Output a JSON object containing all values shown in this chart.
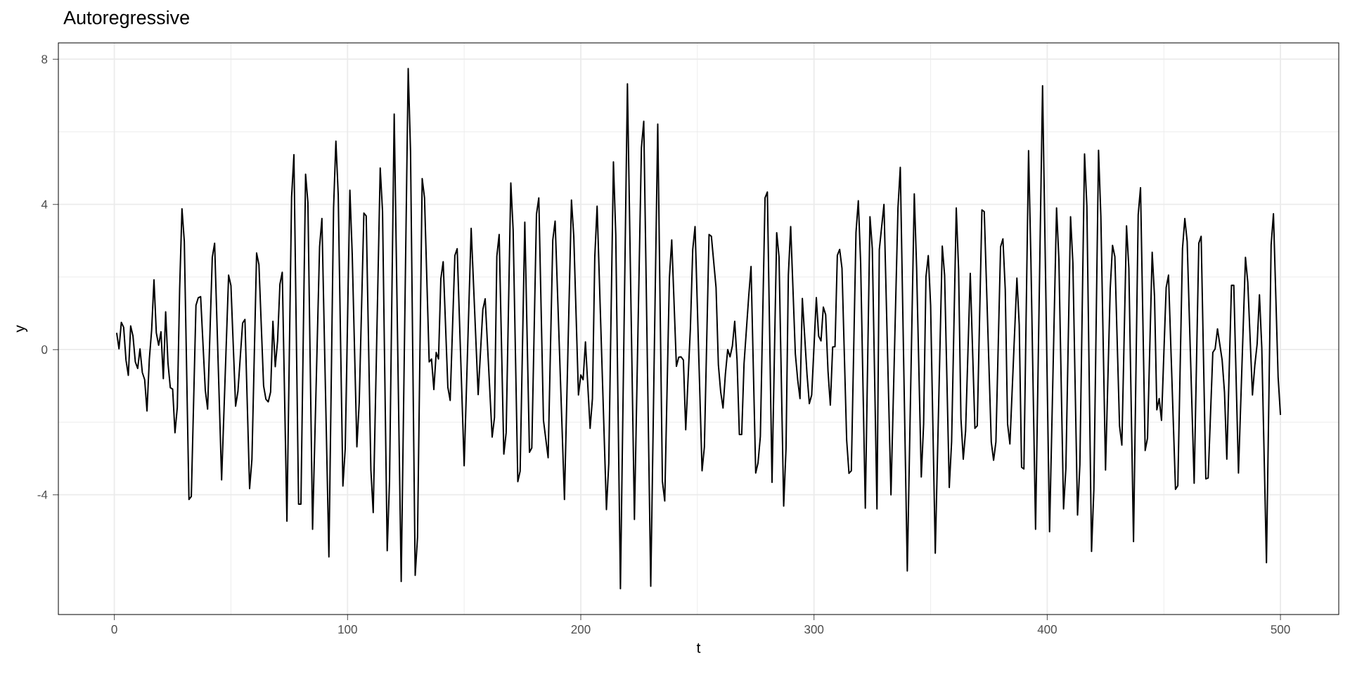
{
  "chart_data": {
    "type": "line",
    "title": "Autoregressive",
    "xlabel": "t",
    "ylabel": "y",
    "xlim": [
      -24,
      525
    ],
    "ylim": [
      -7.3,
      8.45
    ],
    "xticks": [
      0,
      100,
      200,
      300,
      400,
      500
    ],
    "yticks": [
      -4,
      0,
      4,
      8
    ],
    "grid": true,
    "color": "#000000",
    "x": [
      1,
      2,
      3,
      4,
      5,
      6,
      7,
      8,
      9,
      10,
      11,
      12,
      13,
      14,
      15,
      16,
      17,
      18,
      19,
      20,
      21,
      22,
      23,
      24,
      25,
      26,
      27,
      28,
      29,
      30,
      32,
      33,
      35,
      36,
      37,
      39,
      40,
      42,
      43,
      46,
      49,
      50,
      52,
      53,
      55,
      56,
      58,
      59,
      61,
      62,
      64,
      65,
      66,
      67,
      68,
      69,
      70,
      71,
      72,
      74,
      76,
      77,
      79,
      80,
      82,
      83,
      85,
      88,
      89,
      92,
      94,
      95,
      96,
      98,
      99,
      101,
      102,
      104,
      105,
      107,
      108,
      110,
      111,
      114,
      115,
      117,
      118,
      120,
      123,
      126,
      127,
      129,
      130,
      132,
      133,
      135,
      136,
      137,
      138,
      139,
      140,
      141,
      143,
      144,
      146,
      147,
      150,
      153,
      156,
      158,
      159,
      162,
      163,
      164,
      165,
      167,
      168,
      170,
      171,
      173,
      174,
      176,
      178,
      179,
      181,
      182,
      184,
      186,
      188,
      189,
      193,
      196,
      197,
      199,
      200,
      201,
      202,
      204,
      205,
      206,
      207,
      211,
      212,
      214,
      215,
      217,
      220,
      223,
      226,
      227,
      230,
      233,
      235,
      236,
      238,
      239,
      241,
      242,
      243,
      244,
      245,
      247,
      248,
      249,
      252,
      253,
      255,
      256,
      258,
      259,
      260,
      261,
      262,
      263,
      264,
      265,
      266,
      267,
      268,
      269,
      270,
      272,
      273,
      275,
      276,
      277,
      279,
      280,
      282,
      284,
      285,
      287,
      288,
      289,
      290,
      292,
      293,
      294,
      295,
      297,
      298,
      299,
      301,
      302,
      303,
      304,
      305,
      306,
      307,
      308,
      309,
      310,
      311,
      312,
      314,
      315,
      316,
      318,
      319,
      320,
      322,
      324,
      325,
      327,
      328,
      330,
      333,
      336,
      337,
      340,
      343,
      344,
      346,
      347,
      348,
      349,
      350,
      352,
      355,
      356,
      358,
      359,
      361,
      362,
      363,
      364,
      365,
      367,
      369,
      370,
      372,
      373,
      376,
      377,
      378,
      380,
      381,
      382,
      383,
      384,
      387,
      388,
      389,
      390,
      392,
      393,
      395,
      398,
      401,
      404,
      405,
      407,
      408,
      410,
      411,
      413,
      414,
      416,
      417,
      419,
      420,
      422,
      423,
      425,
      427,
      428,
      429,
      431,
      432,
      434,
      435,
      437,
      439,
      440,
      442,
      443,
      445,
      446,
      447,
      448,
      449,
      451,
      452,
      455,
      456,
      458,
      459,
      460,
      463,
      465,
      466,
      468,
      469,
      471,
      472,
      473,
      475,
      476,
      477,
      479,
      480,
      482,
      485,
      486,
      488,
      489,
      490,
      491,
      492,
      494,
      496,
      497,
      499,
      500
    ],
    "values": [
      0.46,
      0.02,
      0.75,
      0.61,
      -0.29,
      -0.71,
      0.65,
      0.37,
      -0.34,
      -0.52,
      0.02,
      -0.63,
      -0.83,
      -1.69,
      -0.27,
      0.54,
      1.92,
      0.46,
      0.12,
      0.49,
      -0.8,
      1.04,
      -0.37,
      -1.05,
      -1.09,
      -2.29,
      -1.59,
      1.66,
      3.88,
      2.98,
      -4.13,
      -4.05,
      1.22,
      1.43,
      1.46,
      -1.12,
      -1.64,
      2.54,
      2.93,
      -3.59,
      2.05,
      1.76,
      -1.56,
      -1.15,
      0.73,
      0.83,
      -3.83,
      -3.02,
      2.66,
      2.34,
      -1.0,
      -1.37,
      -1.44,
      -1.17,
      0.78,
      -0.47,
      0.24,
      1.8,
      2.13,
      -4.73,
      4.2,
      5.37,
      -4.26,
      -4.26,
      4.83,
      4.05,
      -4.95,
      2.83,
      3.61,
      -5.71,
      3.9,
      5.74,
      4.26,
      -3.76,
      -2.73,
      4.39,
      2.63,
      -2.68,
      -1.46,
      3.76,
      3.68,
      -3.32,
      -4.49,
      5.0,
      3.8,
      -5.54,
      -3.61,
      6.49,
      -6.39,
      7.74,
      5.46,
      -6.22,
      -5.17,
      4.71,
      4.18,
      -0.34,
      -0.26,
      -1.1,
      -0.08,
      -0.26,
      1.95,
      2.42,
      -1.04,
      -1.4,
      2.59,
      2.78,
      -3.2,
      3.34,
      -1.24,
      1.1,
      1.4,
      -2.41,
      -1.87,
      2.57,
      3.17,
      -2.88,
      -2.29,
      4.59,
      3.29,
      -3.64,
      -3.35,
      3.51,
      -2.83,
      -2.71,
      3.73,
      4.18,
      -1.95,
      -2.98,
      3.02,
      3.54,
      -4.13,
      4.12,
      3.12,
      -1.25,
      -0.7,
      -0.83,
      0.21,
      -2.17,
      -1.35,
      2.54,
      3.95,
      -4.41,
      -3.14,
      5.17,
      3.17,
      -6.59,
      7.32,
      -4.68,
      5.56,
      6.29,
      -6.52,
      6.21,
      -3.63,
      -4.17,
      1.98,
      3.02,
      -0.46,
      -0.21,
      -0.2,
      -0.29,
      -2.21,
      0.59,
      2.75,
      3.39,
      -3.34,
      -2.68,
      3.17,
      3.12,
      1.71,
      -0.42,
      -1.17,
      -1.61,
      -0.68,
      0.0,
      -0.2,
      0.1,
      0.78,
      -0.29,
      -2.34,
      -2.34,
      -0.39,
      1.46,
      2.29,
      -3.4,
      -3.12,
      -2.39,
      4.18,
      4.34,
      -3.66,
      3.22,
      2.56,
      -4.31,
      -2.73,
      2.05,
      3.39,
      -0.12,
      -0.83,
      -1.35,
      1.41,
      -0.68,
      -1.49,
      -1.25,
      1.43,
      0.37,
      0.24,
      1.17,
      0.96,
      -0.59,
      -1.53,
      0.07,
      0.08,
      2.59,
      2.76,
      2.24,
      -2.49,
      -3.41,
      -3.34,
      3.22,
      4.1,
      2.39,
      -4.37,
      3.66,
      2.78,
      -4.39,
      2.75,
      4.0,
      -4.0,
      3.9,
      5.02,
      -6.1,
      4.29,
      2.24,
      -3.51,
      -2.05,
      2.0,
      2.59,
      1.22,
      -5.61,
      2.85,
      2.05,
      -3.8,
      -2.54,
      3.9,
      2.2,
      -1.9,
      -3.02,
      -2.24,
      2.1,
      -2.17,
      -2.1,
      3.85,
      3.8,
      -2.54,
      -3.05,
      -2.54,
      2.83,
      3.05,
      1.66,
      -2.05,
      -2.6,
      1.97,
      0.68,
      -3.24,
      -3.29,
      5.48,
      2.49,
      -4.95,
      7.27,
      -5.02,
      3.9,
      2.49,
      -4.39,
      -3.27,
      3.66,
      2.39,
      -4.56,
      -3.17,
      5.39,
      3.95,
      -5.56,
      -3.85,
      5.49,
      3.66,
      -3.32,
      1.66,
      2.87,
      2.56,
      -2.1,
      -2.63,
      3.41,
      2.24,
      -5.29,
      3.71,
      4.46,
      -2.78,
      -2.44,
      2.68,
      1.46,
      -1.66,
      -1.35,
      -1.95,
      1.71,
      2.05,
      -3.85,
      -3.75,
      2.78,
      3.61,
      2.98,
      -3.68,
      2.93,
      3.12,
      -3.56,
      -3.54,
      -0.08,
      0.02,
      0.57,
      -0.29,
      -1.17,
      -3.02,
      1.77,
      1.77,
      -3.4,
      2.54,
      1.85,
      -1.25,
      -0.44,
      0.15,
      1.51,
      0.05,
      -5.87,
      2.88,
      3.74,
      -0.76,
      -1.8
    ]
  }
}
